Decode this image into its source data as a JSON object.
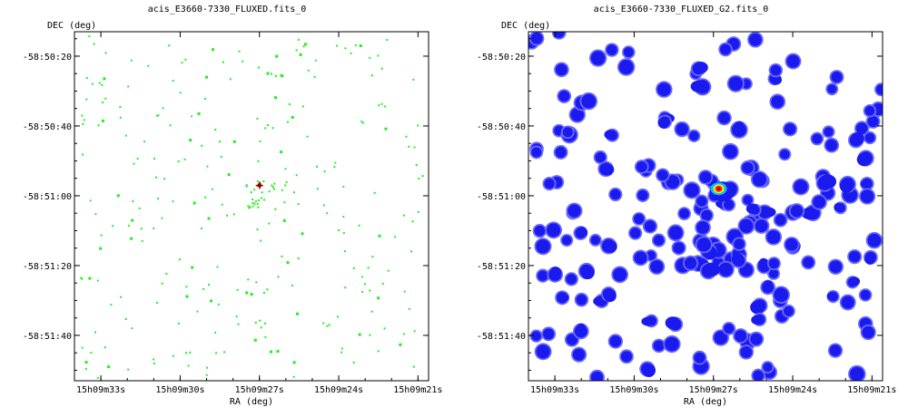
{
  "chart_data": [
    {
      "type": "scatter",
      "title": "acis_E3660-7330_FLUXED.fits_0",
      "xlabel": "RA (deg)",
      "ylabel": "DEC (deg)",
      "x_ticks": [
        "15h09m33s",
        "15h09m30s",
        "15h09m27s",
        "15h09m24s",
        "15h09m21s"
      ],
      "y_ticks": [
        "-58:50:20",
        "-58:50:40",
        "-58:51:00",
        "-58:51:20",
        "-58:51:40"
      ],
      "point_color": "#22ee22",
      "bright_source_color": "#8b0000",
      "bright_source": {
        "ra_s": 27.0,
        "dec_s": 57
      },
      "random_seed": 7,
      "point_count": 260,
      "cluster": {
        "ra_s": 26.8,
        "dec_s": 58,
        "count": 30
      }
    },
    {
      "type": "heatmap",
      "title": "acis_E3660-7330_FLUXED_G2.fits_0",
      "xlabel": "RA (deg)",
      "ylabel": "DEC (deg)",
      "x_ticks": [
        "15h09m33s",
        "15h09m30s",
        "15h09m27s",
        "15h09m24s",
        "15h09m21s"
      ],
      "y_ticks": [
        "-58:50:20",
        "-58:50:40",
        "-58:51:00",
        "-58:51:20",
        "-58:51:40"
      ],
      "blob_color": "#1a1aee",
      "blob_edge_color": "#6a6aff",
      "random_seed": 11,
      "blob_count": 200,
      "hot_source": {
        "ra_s": 26.8,
        "dec_s": 58,
        "colors": [
          "#00c0ff",
          "#ffee00",
          "#ff2a00",
          "#b00000"
        ]
      }
    }
  ]
}
